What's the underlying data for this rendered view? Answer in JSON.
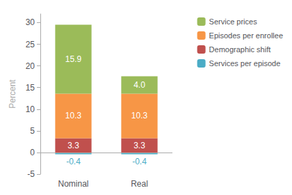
{
  "chart_data": {
    "type": "bar",
    "categories": [
      "Nominal",
      "Real"
    ],
    "series": [
      {
        "name": "Services per episode",
        "color": "#4bacc6",
        "values": [
          -0.4,
          -0.4
        ],
        "value_labels": [
          "-0.4",
          "-0.4"
        ]
      },
      {
        "name": "Demographic shift",
        "color": "#c0504d",
        "values": [
          3.3,
          3.3
        ],
        "value_labels": [
          "3.3",
          "3.3"
        ]
      },
      {
        "name": "Episodes per enrollee",
        "color": "#f79646",
        "values": [
          10.3,
          10.3
        ],
        "value_labels": [
          "10.3",
          "10.3"
        ]
      },
      {
        "name": "Service prices",
        "color": "#9bbb59",
        "values": [
          15.9,
          4.0
        ],
        "value_labels": [
          "15.9",
          "4.0"
        ]
      }
    ],
    "ylabel": "Percent",
    "ylim": [
      -5,
      32
    ],
    "yticks": [
      -5,
      0,
      5,
      10,
      15,
      20,
      25,
      30
    ],
    "stacked": true,
    "data_labels": true,
    "legend": "right",
    "grid": false
  }
}
